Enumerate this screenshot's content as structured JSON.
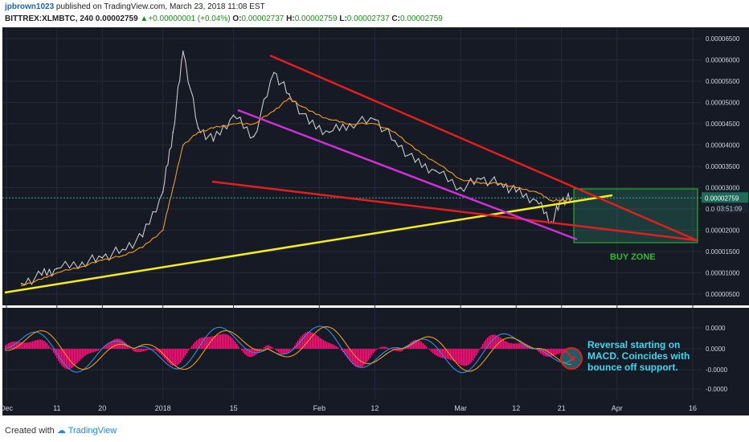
{
  "header": {
    "username": "jpbrown1023",
    "published_text": "published on TradingView.com, March 23, 2018 11:08 EST",
    "symbol": "BITTREX:XLMBTC, 240",
    "last": "0.00002759",
    "change": "+0.00000001 (+0.04%)",
    "O_label": "O:",
    "O": "0.00002737",
    "H_label": "H:",
    "H": "0.00002759",
    "L_label": "L:",
    "L": "0.00002737",
    "C_label": "C:",
    "C": "0.00002759"
  },
  "price_axis": {
    "ticks": [
      "0.00006500",
      "0.00006000",
      "0.00005500",
      "0.00005000",
      "0.00004500",
      "0.00004000",
      "0.00003500",
      "0.00003000",
      "0.00002500",
      "0.00002000",
      "0.00001500",
      "0.00001000",
      "0.00000500"
    ],
    "current_price": "0.00002759",
    "countdown": "03:51:09"
  },
  "macd_axis": {
    "ticks": [
      "0.0000",
      "0.0000",
      "-0.0000",
      "-0.0000"
    ]
  },
  "time_axis": {
    "ticks": [
      "Dec",
      "11",
      "20",
      "2018",
      "15",
      "Feb",
      "12",
      "Mar",
      "12",
      "21",
      "Apr",
      "16"
    ]
  },
  "annotations": {
    "buy_zone": "BUY ZONE",
    "macd_note": [
      "Reversal starting on",
      "MACD. Coincides with",
      "bounce off support."
    ]
  },
  "colors": {
    "background": "#161a25",
    "price": "#c8c8c8",
    "ma": "#f29a1a",
    "resistance": "#e31e1e",
    "support": "#f5ee1b",
    "channel": "#d12fd6",
    "buyzone": "#2bbf2b",
    "macd_hist": "#e7207f",
    "macd_line": "#2f8fe0",
    "signal_line": "#f09a1a",
    "note": "#3fd7f0"
  },
  "chart_data": {
    "type": "line",
    "title": "",
    "ylim": [
      3e-06,
      6.65e-05
    ],
    "x": [
      "Dec 4",
      "Dec 8",
      "Dec 11",
      "Dec 16",
      "Dec 20",
      "Dec 24",
      "Dec 28",
      "Jan 1",
      "Jan 3",
      "Jan 5",
      "Jan 8",
      "Jan 11",
      "Jan 15",
      "Jan 19",
      "Jan 23",
      "Jan 26",
      "Jan 30",
      "Feb 3",
      "Feb 7",
      "Feb 12",
      "Feb 16",
      "Feb 20",
      "Feb 24",
      "Mar 1",
      "Mar 5",
      "Mar 9",
      "Mar 12",
      "Mar 16",
      "Mar 19",
      "Mar 21",
      "Mar 23"
    ],
    "series": [
      {
        "values": [
          7.5e-06,
          9.5e-06,
          1.1e-05,
          1.25e-05,
          1.35e-05,
          1.55e-05,
          1.85e-05,
          2.9e-05,
          4.3e-05,
          6.2e-05,
          4.4e-05,
          4.1e-05,
          4.7e-05,
          4.2e-05,
          5.7e-05,
          5.2e-05,
          4.5e-05,
          4.3e-05,
          4.5e-05,
          4.6e-05,
          4.1e-05,
          3.6e-05,
          3.4e-05,
          3e-05,
          3.2e-05,
          3.1e-05,
          2.9e-05,
          2.7e-05,
          2.2e-05,
          2.7e-05,
          2.76e-05
        ]
      },
      {
        "values": [
          7e-06,
          8.5e-06,
          1e-05,
          1.15e-05,
          1.3e-05,
          1.4e-05,
          1.6e-05,
          2e-05,
          3e-05,
          4e-05,
          4.3e-05,
          4.4e-05,
          4.5e-05,
          4.5e-05,
          4.8e-05,
          5.1e-05,
          4.8e-05,
          4.6e-05,
          4.5e-05,
          4.5e-05,
          4.3e-05,
          3.9e-05,
          3.6e-05,
          3.2e-05,
          3.1e-05,
          3.1e-05,
          3e-05,
          2.9e-05,
          2.7e-05,
          2.7e-05,
          2.73e-05
        ]
      }
    ]
  }
}
